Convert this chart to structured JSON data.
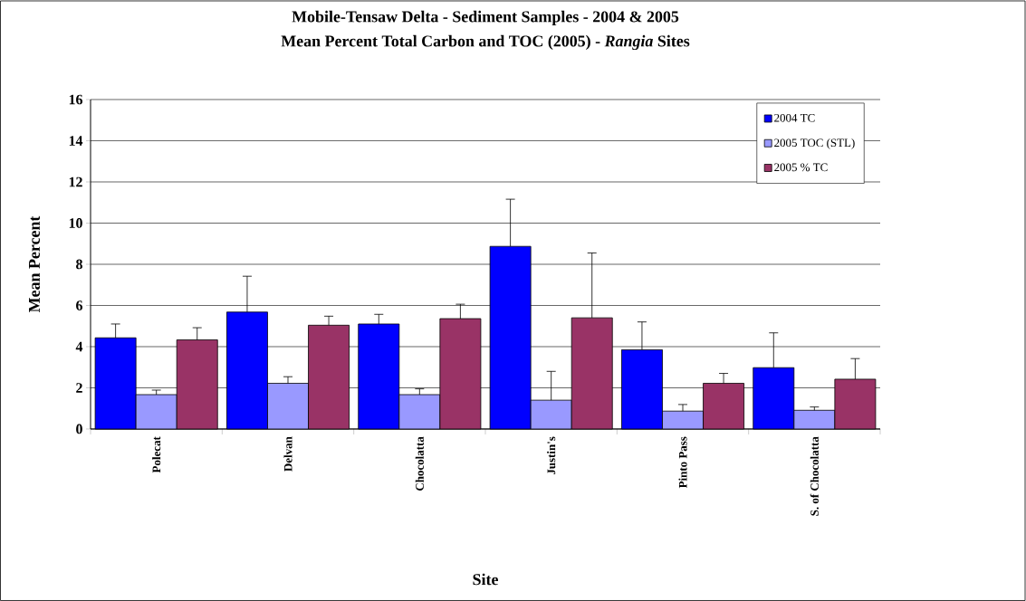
{
  "chart_data": {
    "type": "bar",
    "title": "Mobile-Tensaw Delta - Sediment Samples - 2004 & 2005",
    "subtitle": "Mean Percent Total Carbon and TOC (2005) - *Rangia* Sites",
    "xlabel": "Site",
    "ylabel": "Mean Percent",
    "categories": [
      "Polecat",
      "Delvan",
      "Chocolatta",
      "Justin's",
      "Pinto Pass",
      "S. of Chocolatta"
    ],
    "series": [
      {
        "name": "2004 TC",
        "color": "#0000ff",
        "values": [
          4.43,
          5.68,
          5.1,
          8.87,
          3.85,
          2.98
        ],
        "errors": [
          [
            4.43,
            5.1
          ],
          [
            5.68,
            7.42
          ],
          [
            5.1,
            5.57
          ],
          [
            8.87,
            11.16
          ],
          [
            3.85,
            5.2
          ],
          [
            2.98,
            4.67
          ]
        ]
      },
      {
        "name": "2005 TOC (STL)",
        "color": "#9999ff",
        "values": [
          1.67,
          2.22,
          1.67,
          1.4,
          0.87,
          0.91
        ],
        "errors": [
          [
            1.67,
            1.89
          ],
          [
            2.22,
            2.54
          ],
          [
            1.67,
            1.95
          ],
          [
            1.4,
            2.8
          ],
          [
            0.87,
            1.19
          ],
          [
            0.91,
            1.07
          ]
        ]
      },
      {
        "name": "2005 % TC",
        "color": "#993366",
        "values": [
          4.33,
          5.04,
          5.36,
          5.4,
          2.22,
          2.42
        ],
        "errors": [
          [
            4.33,
            4.92
          ],
          [
            5.04,
            5.48
          ],
          [
            5.36,
            6.06
          ],
          [
            5.4,
            8.55
          ],
          [
            2.22,
            2.7
          ],
          [
            2.42,
            3.42
          ]
        ]
      }
    ],
    "ylim": [
      0,
      16
    ],
    "yticks": [
      0,
      2,
      4,
      6,
      8,
      10,
      12,
      14,
      16
    ],
    "grid": "y",
    "legend": "top right"
  }
}
